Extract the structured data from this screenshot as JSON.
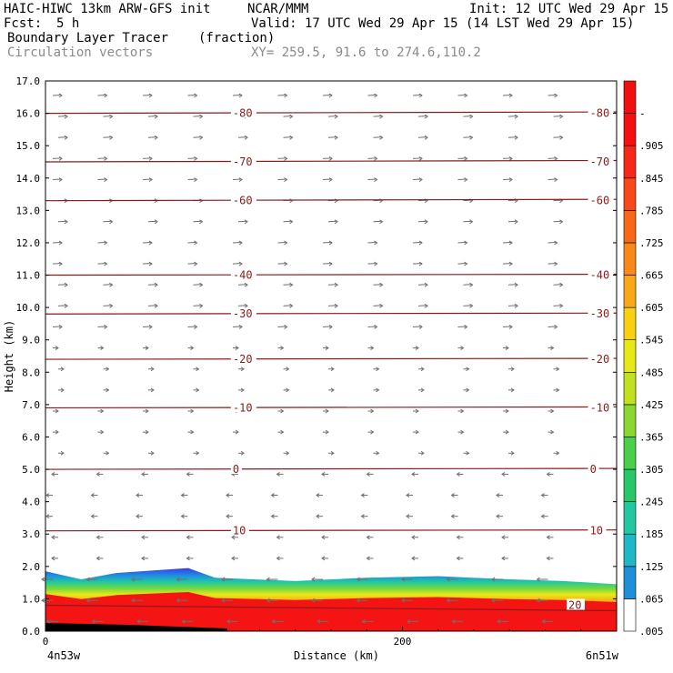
{
  "header": {
    "model": "HAIC-HIWC 13km ARW-GFS init",
    "org": "NCAR/MMM",
    "init": "Init: 12 UTC Wed 29 Apr 15",
    "fcst_label": "Fcst:",
    "fcst_value": "5 h",
    "valid": "Valid: 17 UTC Wed 29 Apr 15 (14 LST Wed 29 Apr 15)",
    "field1": "Boundary Layer Tracer",
    "field1_units": "(fraction)",
    "field2": "Circulation vectors",
    "xy": "XY= 259.5, 91.6 to 274.6,110.2"
  },
  "chart_data": {
    "type": "cross-section",
    "ylabel": "Height (km)",
    "xlabel": "Distance (km)",
    "x_left_label": "4n53w",
    "x_right_label": "6n51w",
    "ylim": [
      0,
      17
    ],
    "xlim": [
      0,
      320
    ],
    "y_ticks": [
      "0.0",
      "1.0",
      "2.0",
      "3.0",
      "4.0",
      "5.0",
      "6.0",
      "7.0",
      "8.0",
      "9.0",
      "10.0",
      "11.0",
      "12.0",
      "13.0",
      "14.0",
      "15.0",
      "16.0",
      "17.0"
    ],
    "x_ticks": [
      {
        "value": 0,
        "label": "0"
      },
      {
        "value": 200,
        "label": "200"
      }
    ],
    "temperature_contours": [
      {
        "label": "-80",
        "height_km": 16.0
      },
      {
        "label": "-70",
        "height_km": 14.5
      },
      {
        "label": "-60",
        "height_km": 13.3
      },
      {
        "label": "-40",
        "height_km": 11.0
      },
      {
        "label": "-30",
        "height_km": 9.8
      },
      {
        "label": "-20",
        "height_km": 8.4
      },
      {
        "label": "-10",
        "height_km": 6.9
      },
      {
        "label": "0",
        "height_km": 5.0
      },
      {
        "label": "10",
        "height_km": 3.1
      },
      {
        "label": "20",
        "height_km": 0.8
      }
    ],
    "tracer_top_km": [
      {
        "x": 0,
        "top": 1.85
      },
      {
        "x": 20,
        "top": 1.6
      },
      {
        "x": 40,
        "top": 1.8
      },
      {
        "x": 80,
        "top": 1.95
      },
      {
        "x": 95,
        "top": 1.65
      },
      {
        "x": 140,
        "top": 1.55
      },
      {
        "x": 180,
        "top": 1.65
      },
      {
        "x": 220,
        "top": 1.7
      },
      {
        "x": 260,
        "top": 1.6
      },
      {
        "x": 290,
        "top": 1.55
      },
      {
        "x": 320,
        "top": 1.45
      }
    ],
    "colorbar": {
      "labels": [
        ".005",
        ".065",
        ".125",
        ".185",
        ".245",
        ".305",
        ".365",
        ".425",
        ".485",
        ".545",
        ".605",
        ".665",
        ".725",
        ".785",
        ".845",
        ".905",
        "-"
      ],
      "colors": [
        "#ffffff",
        "#1e8fd8",
        "#20b8c8",
        "#22c8a0",
        "#28c868",
        "#48d048",
        "#88d830",
        "#c0e020",
        "#e8e818",
        "#f8d010",
        "#f8a818",
        "#f88818",
        "#f86818",
        "#f84818",
        "#f82818",
        "#f41010",
        "#f01010"
      ]
    },
    "colors": {
      "contour": "#8b1a1a",
      "vector": "#707070"
    }
  }
}
